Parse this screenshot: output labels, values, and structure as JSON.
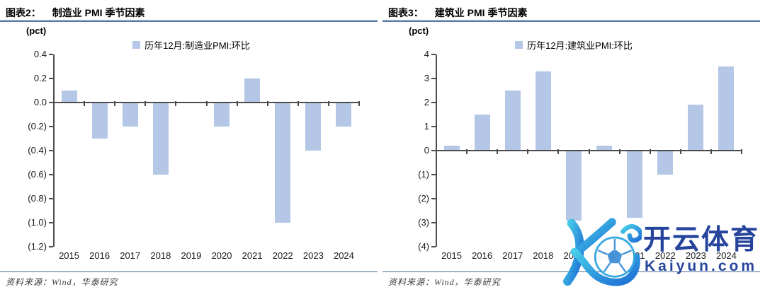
{
  "watermark": {
    "brand_cn": "开云体育",
    "brand_domain": "Kaiyun.com",
    "logo_icon": "kaiyun-k-soccer-ball-logo",
    "brand_navy": "#1b3b97",
    "logo_gradient": [
      "#3ecde9",
      "#1267d2"
    ]
  },
  "chart_data": [
    {
      "type": "bar",
      "figure_label": "图表2：",
      "title": "制造业 PMI 季节因素",
      "ylabel": "(pct)",
      "xlabel": "",
      "legend": [
        "历年12月:制造业PMI:环比"
      ],
      "legend_position": "top-center",
      "source_note": "资料来源：Wind，华泰研究",
      "categories": [
        "2015",
        "2016",
        "2017",
        "2018",
        "2019",
        "2020",
        "2021",
        "2022",
        "2023",
        "2024"
      ],
      "values": [
        0.1,
        -0.3,
        -0.2,
        -0.6,
        0.0,
        -0.2,
        0.2,
        -1.0,
        -0.4,
        -0.2
      ],
      "ylim": [
        -1.2,
        0.4
      ],
      "yticks": [
        0.4,
        0.2,
        0.0,
        -0.2,
        -0.4,
        -0.6,
        -0.8,
        -1.0,
        -1.2
      ],
      "ytick_labels": [
        "0.4",
        "0.2",
        "0.0",
        "(0.2)",
        "(0.4)",
        "(0.6)",
        "(0.8)",
        "(1.0)",
        "(1.2)"
      ],
      "grid": false,
      "bar_color": "#b4c7e7",
      "axis_color": "#4d4d4d"
    },
    {
      "type": "bar",
      "figure_label": "图表3：",
      "title": "建筑业 PMI 季节因素",
      "ylabel": "(pct)",
      "xlabel": "",
      "legend": [
        "历年12月:建筑业PMI:环比"
      ],
      "legend_position": "top-center",
      "source_note": "资料来源：Wind，华泰研究",
      "categories": [
        "2015",
        "2016",
        "2017",
        "2018",
        "2019",
        "2020",
        "2021",
        "2022",
        "2023",
        "2024"
      ],
      "values": [
        0.2,
        1.5,
        2.5,
        3.3,
        -2.9,
        0.2,
        -2.8,
        -1.0,
        1.9,
        3.5
      ],
      "ylim": [
        -4,
        4
      ],
      "yticks": [
        4,
        3,
        2,
        1,
        0,
        -1,
        -2,
        -3,
        -4
      ],
      "ytick_labels": [
        "4",
        "3",
        "2",
        "1",
        "0",
        "(1)",
        "(2)",
        "(3)",
        "(4)"
      ],
      "grid": false,
      "bar_color": "#b4c7e7",
      "axis_color": "#4d4d4d"
    }
  ]
}
